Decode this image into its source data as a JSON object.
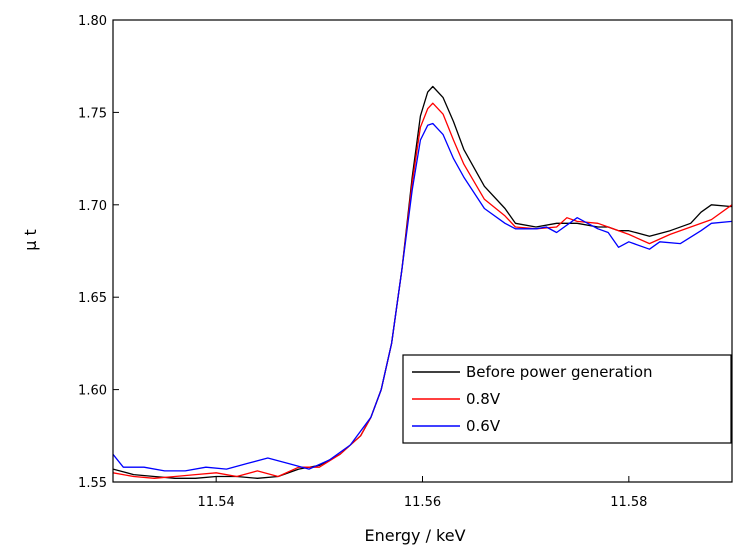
{
  "chart_data": {
    "type": "line",
    "title": "",
    "xlabel": "Energy / keV",
    "ylabel": "μ t",
    "xlim": [
      11.53,
      11.59
    ],
    "ylim": [
      1.55,
      1.8
    ],
    "xticks": [
      11.54,
      11.56,
      11.58
    ],
    "xtick_labels": [
      "11.54",
      "11.56",
      "11.58"
    ],
    "yticks": [
      1.55,
      1.6,
      1.65,
      1.7,
      1.75,
      1.8
    ],
    "ytick_labels": [
      "1.55",
      "1.60",
      "1.65",
      "1.70",
      "1.75",
      "1.80"
    ],
    "grid": false,
    "legend_position": "lower-right",
    "series": [
      {
        "name": "Before power generation",
        "color": "#000000",
        "points": [
          [
            11.53,
            1.557
          ],
          [
            11.532,
            1.554
          ],
          [
            11.534,
            1.553
          ],
          [
            11.536,
            1.552
          ],
          [
            11.538,
            1.552
          ],
          [
            11.54,
            1.553
          ],
          [
            11.542,
            1.553
          ],
          [
            11.544,
            1.552
          ],
          [
            11.546,
            1.553
          ],
          [
            11.548,
            1.557
          ],
          [
            11.55,
            1.559
          ],
          [
            11.552,
            1.565
          ],
          [
            11.554,
            1.575
          ],
          [
            11.555,
            1.585
          ],
          [
            11.556,
            1.6
          ],
          [
            11.557,
            1.625
          ],
          [
            11.558,
            1.665
          ],
          [
            11.559,
            1.715
          ],
          [
            11.5598,
            1.748
          ],
          [
            11.5605,
            1.761
          ],
          [
            11.561,
            1.764
          ],
          [
            11.562,
            1.758
          ],
          [
            11.563,
            1.745
          ],
          [
            11.564,
            1.73
          ],
          [
            11.566,
            1.71
          ],
          [
            11.568,
            1.698
          ],
          [
            11.569,
            1.69
          ],
          [
            11.571,
            1.688
          ],
          [
            11.573,
            1.69
          ],
          [
            11.575,
            1.69
          ],
          [
            11.577,
            1.688
          ],
          [
            11.578,
            1.688
          ],
          [
            11.579,
            1.686
          ],
          [
            11.58,
            1.686
          ],
          [
            11.582,
            1.683
          ],
          [
            11.584,
            1.686
          ],
          [
            11.586,
            1.69
          ],
          [
            11.587,
            1.696
          ],
          [
            11.588,
            1.7
          ],
          [
            11.59,
            1.699
          ]
        ]
      },
      {
        "name": "0.8V",
        "color": "#ff0000",
        "points": [
          [
            11.53,
            1.555
          ],
          [
            11.532,
            1.553
          ],
          [
            11.534,
            1.552
          ],
          [
            11.536,
            1.553
          ],
          [
            11.538,
            1.554
          ],
          [
            11.54,
            1.555
          ],
          [
            11.542,
            1.553
          ],
          [
            11.544,
            1.556
          ],
          [
            11.546,
            1.553
          ],
          [
            11.548,
            1.558
          ],
          [
            11.55,
            1.558
          ],
          [
            11.552,
            1.565
          ],
          [
            11.554,
            1.575
          ],
          [
            11.555,
            1.585
          ],
          [
            11.556,
            1.6
          ],
          [
            11.557,
            1.625
          ],
          [
            11.558,
            1.665
          ],
          [
            11.559,
            1.712
          ],
          [
            11.5598,
            1.742
          ],
          [
            11.5605,
            1.752
          ],
          [
            11.561,
            1.755
          ],
          [
            11.562,
            1.749
          ],
          [
            11.563,
            1.735
          ],
          [
            11.564,
            1.722
          ],
          [
            11.566,
            1.703
          ],
          [
            11.568,
            1.694
          ],
          [
            11.569,
            1.688
          ],
          [
            11.571,
            1.687
          ],
          [
            11.573,
            1.688
          ],
          [
            11.574,
            1.693
          ],
          [
            11.575,
            1.691
          ],
          [
            11.577,
            1.69
          ],
          [
            11.578,
            1.688
          ],
          [
            11.58,
            1.684
          ],
          [
            11.582,
            1.679
          ],
          [
            11.584,
            1.684
          ],
          [
            11.586,
            1.688
          ],
          [
            11.588,
            1.692
          ],
          [
            11.59,
            1.7
          ]
        ]
      },
      {
        "name": "0.6V",
        "color": "#0000ff",
        "points": [
          [
            11.53,
            1.565
          ],
          [
            11.531,
            1.558
          ],
          [
            11.533,
            1.558
          ],
          [
            11.535,
            1.556
          ],
          [
            11.537,
            1.556
          ],
          [
            11.539,
            1.558
          ],
          [
            11.541,
            1.557
          ],
          [
            11.543,
            1.56
          ],
          [
            11.545,
            1.563
          ],
          [
            11.547,
            1.56
          ],
          [
            11.549,
            1.557
          ],
          [
            11.551,
            1.562
          ],
          [
            11.553,
            1.57
          ],
          [
            11.555,
            1.585
          ],
          [
            11.556,
            1.6
          ],
          [
            11.557,
            1.625
          ],
          [
            11.558,
            1.665
          ],
          [
            11.559,
            1.708
          ],
          [
            11.5598,
            1.735
          ],
          [
            11.5605,
            1.743
          ],
          [
            11.561,
            1.744
          ],
          [
            11.562,
            1.738
          ],
          [
            11.563,
            1.725
          ],
          [
            11.564,
            1.715
          ],
          [
            11.566,
            1.698
          ],
          [
            11.568,
            1.69
          ],
          [
            11.569,
            1.687
          ],
          [
            11.571,
            1.687
          ],
          [
            11.572,
            1.688
          ],
          [
            11.573,
            1.685
          ],
          [
            11.575,
            1.693
          ],
          [
            11.577,
            1.687
          ],
          [
            11.578,
            1.685
          ],
          [
            11.579,
            1.677
          ],
          [
            11.58,
            1.68
          ],
          [
            11.582,
            1.676
          ],
          [
            11.583,
            1.68
          ],
          [
            11.585,
            1.679
          ],
          [
            11.587,
            1.686
          ],
          [
            11.588,
            1.69
          ],
          [
            11.59,
            1.691
          ]
        ]
      }
    ]
  }
}
